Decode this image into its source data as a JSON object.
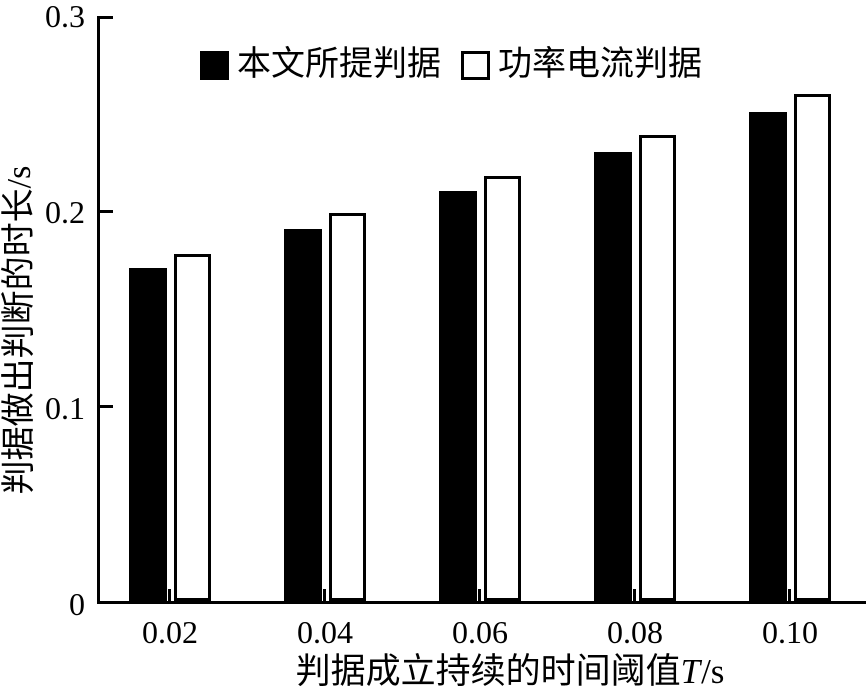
{
  "chart_data": {
    "type": "bar",
    "title": "",
    "categories": [
      "0.02",
      "0.04",
      "0.06",
      "0.08",
      "0.10"
    ],
    "series": [
      {
        "name": "本文所提判据",
        "style": "solid-black",
        "values": [
          0.171,
          0.191,
          0.21,
          0.23,
          0.251
        ]
      },
      {
        "name": "功率电流判据",
        "style": "white-outlined",
        "values": [
          0.178,
          0.199,
          0.218,
          0.239,
          0.26
        ]
      }
    ],
    "xlabel": {
      "prefix": "判据成立持续的时间阈值",
      "variable": "T",
      "suffix": "/s"
    },
    "ylabel": "判据做出判断的时长/s",
    "ylim": [
      0,
      0.3
    ],
    "yticks": [
      0,
      0.1,
      0.2,
      0.3
    ],
    "ytick_labels": [
      "0",
      "0.1",
      "0.2",
      "0.3"
    ],
    "legend_position": "top-inside",
    "grid": false,
    "colors": {
      "axis": "#000000",
      "bar_fill": "#000000",
      "bar_outline": "#000000",
      "background": "#ffffff"
    }
  }
}
